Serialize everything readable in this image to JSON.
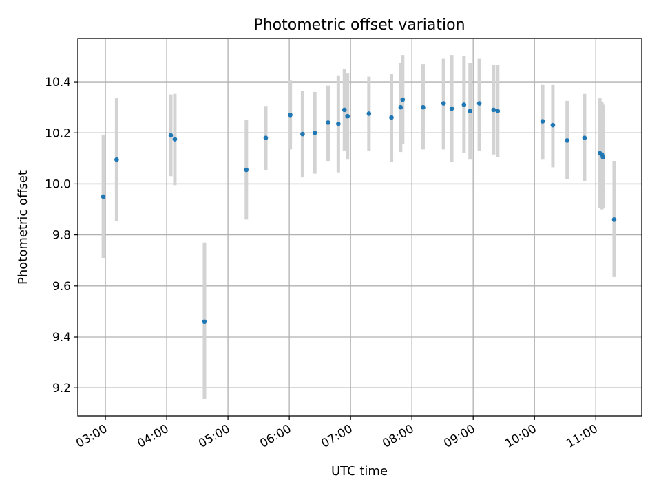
{
  "chart_data": {
    "type": "scatter",
    "title": "Photometric offset variation",
    "xlabel": "UTC time",
    "ylabel": "Photometric offset",
    "x_ticks": [
      "03:00",
      "04:00",
      "05:00",
      "06:00",
      "07:00",
      "08:00",
      "09:00",
      "10:00",
      "11:00"
    ],
    "y_ticks": [
      "9.2",
      "9.4",
      "9.6",
      "9.8",
      "10.0",
      "10.2",
      "10.4"
    ],
    "xlim": [
      "02:33",
      "11:45"
    ],
    "ylim": [
      9.09,
      10.57
    ],
    "grid": true,
    "marker_color": "#1f77b4",
    "errorbar_color": "#d3d3d3",
    "series": [
      {
        "points": [
          {
            "x": "02:58",
            "y": 9.95,
            "low": 9.71,
            "high": 10.19
          },
          {
            "x": "03:11",
            "y": 10.095,
            "low": 9.855,
            "high": 10.335
          },
          {
            "x": "04:04",
            "y": 10.19,
            "low": 10.03,
            "high": 10.35
          },
          {
            "x": "04:08",
            "y": 10.175,
            "low": 9.995,
            "high": 10.355
          },
          {
            "x": "04:37",
            "y": 9.46,
            "low": 9.155,
            "high": 9.77
          },
          {
            "x": "05:18",
            "y": 10.055,
            "low": 9.86,
            "high": 10.25
          },
          {
            "x": "05:37",
            "y": 10.18,
            "low": 10.055,
            "high": 10.305
          },
          {
            "x": "06:01",
            "y": 10.27,
            "low": 10.135,
            "high": 10.405
          },
          {
            "x": "06:13",
            "y": 10.195,
            "low": 10.025,
            "high": 10.365
          },
          {
            "x": "06:25",
            "y": 10.2,
            "low": 10.04,
            "high": 10.36
          },
          {
            "x": "06:38",
            "y": 10.24,
            "low": 10.09,
            "high": 10.385
          },
          {
            "x": "06:48",
            "y": 10.235,
            "low": 10.045,
            "high": 10.425
          },
          {
            "x": "06:54",
            "y": 10.29,
            "low": 10.13,
            "high": 10.45
          },
          {
            "x": "06:57",
            "y": 10.265,
            "low": 10.095,
            "high": 10.435
          },
          {
            "x": "07:18",
            "y": 10.275,
            "low": 10.13,
            "high": 10.42
          },
          {
            "x": "07:40",
            "y": 10.26,
            "low": 10.085,
            "high": 10.43
          },
          {
            "x": "07:49",
            "y": 10.3,
            "low": 10.125,
            "high": 10.475
          },
          {
            "x": "07:51",
            "y": 10.33,
            "low": 10.155,
            "high": 10.505
          },
          {
            "x": "08:11",
            "y": 10.3,
            "low": 10.135,
            "high": 10.47
          },
          {
            "x": "08:31",
            "y": 10.315,
            "low": 10.135,
            "high": 10.49
          },
          {
            "x": "08:39",
            "y": 10.295,
            "low": 10.085,
            "high": 10.505
          },
          {
            "x": "08:51",
            "y": 10.31,
            "low": 10.12,
            "high": 10.5
          },
          {
            "x": "08:57",
            "y": 10.285,
            "low": 10.095,
            "high": 10.475
          },
          {
            "x": "09:06",
            "y": 10.315,
            "low": 10.13,
            "high": 10.49
          },
          {
            "x": "09:20",
            "y": 10.29,
            "low": 10.115,
            "high": 10.465
          },
          {
            "x": "09:24",
            "y": 10.285,
            "low": 10.105,
            "high": 10.465
          },
          {
            "x": "10:08",
            "y": 10.245,
            "low": 10.095,
            "high": 10.39
          },
          {
            "x": "10:18",
            "y": 10.23,
            "low": 10.065,
            "high": 10.39
          },
          {
            "x": "10:32",
            "y": 10.17,
            "low": 10.02,
            "high": 10.325
          },
          {
            "x": "10:49",
            "y": 10.18,
            "low": 10.01,
            "high": 10.355
          },
          {
            "x": "11:04",
            "y": 10.12,
            "low": 9.905,
            "high": 10.335
          },
          {
            "x": "11:06",
            "y": 10.115,
            "low": 9.9,
            "high": 10.32
          },
          {
            "x": "11:07",
            "y": 10.105,
            "low": 9.905,
            "high": 10.31
          },
          {
            "x": "11:18",
            "y": 9.86,
            "low": 9.635,
            "high": 10.09
          }
        ]
      }
    ]
  }
}
